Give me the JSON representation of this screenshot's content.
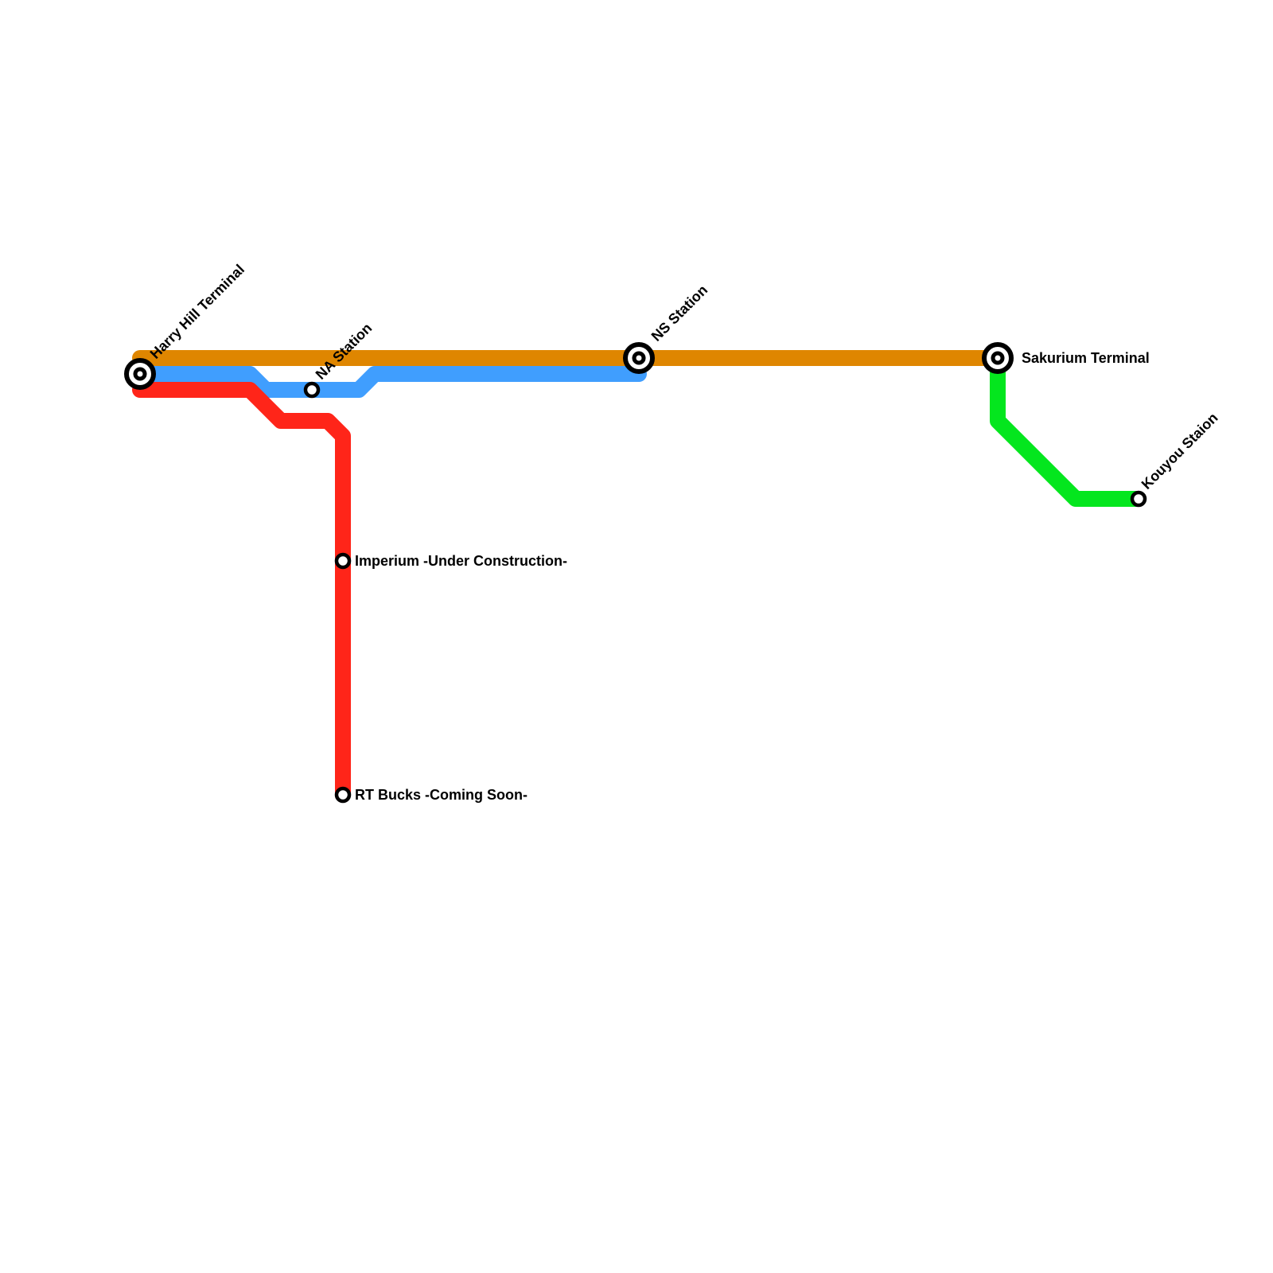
{
  "lines": [
    {
      "id": "orange",
      "color": "#df8600"
    },
    {
      "id": "blue",
      "color": "#409efe"
    },
    {
      "id": "red",
      "color": "#ff2519"
    },
    {
      "id": "green",
      "color": "#04e61e"
    }
  ],
  "stations": [
    {
      "id": "harry-hill-terminal",
      "name": "Harry Hill Terminal",
      "interchange": true
    },
    {
      "id": "na-station",
      "name": "NA Station",
      "interchange": false
    },
    {
      "id": "ns-station",
      "name": "NS Station",
      "interchange": true
    },
    {
      "id": "sakurium-terminal",
      "name": "Sakurium Terminal",
      "interchange": true
    },
    {
      "id": "imperium",
      "name": "Imperium -Under Construction-",
      "interchange": false
    },
    {
      "id": "rt-bucks",
      "name": "RT Bucks -Coming Soon-",
      "interchange": false
    },
    {
      "id": "kouyou-staion",
      "name": "Kouyou Staion",
      "interchange": false
    }
  ]
}
